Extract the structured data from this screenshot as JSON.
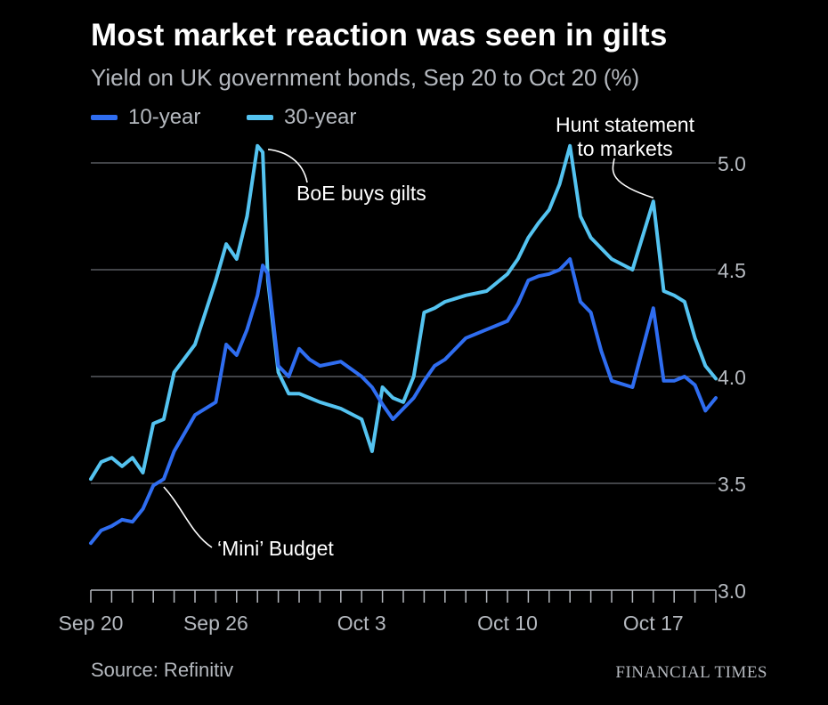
{
  "title": "Most market reaction was seen in gilts",
  "subtitle": "Yield on UK government bonds, Sep 20 to Oct 20 (%)",
  "source": "Source: Refinitiv",
  "brand": "FINANCIAL TIMES",
  "colors": {
    "background": "#000000",
    "ten_year": "#2f6df0",
    "thirty_year": "#54c3f0",
    "grid": "#6a6e73",
    "text_muted": "#b5b9bf"
  },
  "legend": [
    {
      "label": "10-year",
      "color": "#2f6df0"
    },
    {
      "label": "30-year",
      "color": "#54c3f0"
    }
  ],
  "chart_data": {
    "type": "line",
    "title": "Most market reaction was seen in gilts",
    "subtitle": "Yield on UK government bonds, Sep 20 to Oct 20 (%)",
    "xlabel": "",
    "ylabel": "",
    "x_tick_labels": [
      "Sep 20",
      "Sep 26",
      "Oct 3",
      "Oct 10",
      "Oct 17"
    ],
    "x_tick_positions": [
      "2022-09-20",
      "2022-09-26",
      "2022-10-03",
      "2022-10-10",
      "2022-10-17"
    ],
    "xlim": [
      "2022-09-20",
      "2022-10-20"
    ],
    "y_ticks": [
      3.0,
      3.5,
      4.0,
      4.5,
      5.0
    ],
    "y_tick_labels": [
      "3.0",
      "3.5",
      "4.0",
      "4.5",
      "5.0"
    ],
    "ylim": [
      3.0,
      5.1
    ],
    "grid": true,
    "y_axis_side": "right",
    "legend_position": "top-left",
    "series": [
      {
        "name": "10-year",
        "color": "#2f6df0",
        "x": [
          "2022-09-20",
          "2022-09-20T12:00",
          "2022-09-21",
          "2022-09-21T12:00",
          "2022-09-22",
          "2022-09-22T12:00",
          "2022-09-23",
          "2022-09-23T12:00",
          "2022-09-24",
          "2022-09-25",
          "2022-09-26",
          "2022-09-26T12:00",
          "2022-09-27",
          "2022-09-27T12:00",
          "2022-09-28",
          "2022-09-28T06:00",
          "2022-09-28T12:00",
          "2022-09-29",
          "2022-09-29T12:00",
          "2022-09-30",
          "2022-09-30T12:00",
          "2022-10-01",
          "2022-10-02",
          "2022-10-03",
          "2022-10-03T12:00",
          "2022-10-04",
          "2022-10-04T12:00",
          "2022-10-05",
          "2022-10-05T12:00",
          "2022-10-06",
          "2022-10-06T12:00",
          "2022-10-07",
          "2022-10-08",
          "2022-10-09",
          "2022-10-10",
          "2022-10-10T12:00",
          "2022-10-11",
          "2022-10-11T12:00",
          "2022-10-12",
          "2022-10-12T12:00",
          "2022-10-13",
          "2022-10-13T12:00",
          "2022-10-14",
          "2022-10-14T12:00",
          "2022-10-15",
          "2022-10-16",
          "2022-10-17",
          "2022-10-17T12:00",
          "2022-10-18",
          "2022-10-18T12:00",
          "2022-10-19",
          "2022-10-19T12:00",
          "2022-10-20"
        ],
        "values": [
          3.22,
          3.28,
          3.3,
          3.33,
          3.32,
          3.38,
          3.49,
          3.52,
          3.65,
          3.82,
          3.88,
          4.15,
          4.1,
          4.22,
          4.38,
          4.52,
          4.48,
          4.05,
          4.0,
          4.13,
          4.08,
          4.05,
          4.07,
          4.0,
          3.95,
          3.87,
          3.8,
          3.85,
          3.9,
          3.98,
          4.05,
          4.08,
          4.18,
          4.22,
          4.26,
          4.34,
          4.45,
          4.47,
          4.48,
          4.5,
          4.55,
          4.35,
          4.3,
          4.12,
          3.98,
          3.95,
          4.32,
          3.98,
          3.98,
          4.0,
          3.96,
          3.84,
          3.9
        ]
      },
      {
        "name": "30-year",
        "color": "#54c3f0",
        "x": [
          "2022-09-20",
          "2022-09-20T12:00",
          "2022-09-21",
          "2022-09-21T12:00",
          "2022-09-22",
          "2022-09-22T12:00",
          "2022-09-23",
          "2022-09-23T12:00",
          "2022-09-24",
          "2022-09-25",
          "2022-09-26",
          "2022-09-26T12:00",
          "2022-09-27",
          "2022-09-27T12:00",
          "2022-09-28",
          "2022-09-28T06:00",
          "2022-09-28T12:00",
          "2022-09-29",
          "2022-09-29T12:00",
          "2022-09-30",
          "2022-09-30T12:00",
          "2022-10-01",
          "2022-10-02",
          "2022-10-03",
          "2022-10-03T12:00",
          "2022-10-04",
          "2022-10-04T12:00",
          "2022-10-05",
          "2022-10-05T12:00",
          "2022-10-06",
          "2022-10-06T12:00",
          "2022-10-07",
          "2022-10-08",
          "2022-10-09",
          "2022-10-10",
          "2022-10-10T12:00",
          "2022-10-11",
          "2022-10-11T12:00",
          "2022-10-12",
          "2022-10-12T12:00",
          "2022-10-13",
          "2022-10-13T12:00",
          "2022-10-14",
          "2022-10-14T12:00",
          "2022-10-15",
          "2022-10-16",
          "2022-10-17",
          "2022-10-17T12:00",
          "2022-10-18",
          "2022-10-18T12:00",
          "2022-10-19",
          "2022-10-19T12:00",
          "2022-10-20"
        ],
        "values": [
          3.52,
          3.6,
          3.62,
          3.58,
          3.62,
          3.55,
          3.78,
          3.8,
          4.02,
          4.15,
          4.45,
          4.62,
          4.55,
          4.75,
          5.08,
          5.05,
          4.45,
          4.02,
          3.92,
          3.92,
          3.9,
          3.88,
          3.85,
          3.8,
          3.65,
          3.95,
          3.9,
          3.88,
          4.0,
          4.3,
          4.32,
          4.35,
          4.38,
          4.4,
          4.48,
          4.55,
          4.65,
          4.72,
          4.78,
          4.9,
          5.08,
          4.75,
          4.65,
          4.6,
          4.55,
          4.5,
          4.82,
          4.4,
          4.38,
          4.35,
          4.18,
          4.05,
          3.99
        ]
      }
    ],
    "annotations": [
      {
        "text": "BoE buys gilts",
        "x": "2022-09-28T06:00",
        "y": 5.08
      },
      {
        "text": "Hunt statement to markets",
        "lines": [
          "Hunt statement",
          "to markets"
        ],
        "x": "2022-10-17",
        "y": 4.82
      },
      {
        "text": "‘Mini’ Budget",
        "x": "2022-09-23T12:00",
        "y": 3.5
      }
    ]
  }
}
